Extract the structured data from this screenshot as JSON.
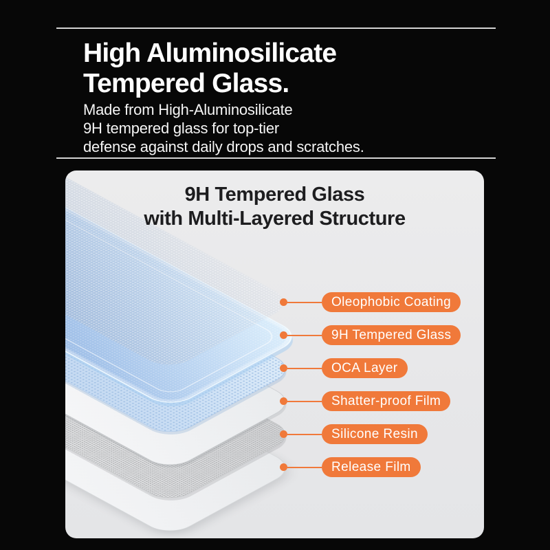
{
  "header": {
    "title_line1": "High Aluminosilicate",
    "title_line2": "Tempered Glass.",
    "subtitle_line1": "Made from High-Aluminosilicate",
    "subtitle_line2": "9H tempered glass for top-tier",
    "subtitle_line3": "defense against daily drops and scratches."
  },
  "panel": {
    "title_line1": "9H Tempered Glass",
    "title_line2": "with Multi-Layered Structure",
    "callouts": [
      {
        "label": "Oleophobic Coating"
      },
      {
        "label": "9H Tempered Glass"
      },
      {
        "label": "OCA Layer"
      },
      {
        "label": "Shatter-proof Film"
      },
      {
        "label": "Silicone Resin"
      },
      {
        "label": "Release Film"
      }
    ]
  },
  "colors": {
    "accent_orange": "#F0793A",
    "background_black": "#070707",
    "panel_background": "#E9E9EA",
    "glass_blue": "#A3C2E9",
    "headline_text": "#FFFFFF",
    "panel_text": "#1D1D1F"
  }
}
